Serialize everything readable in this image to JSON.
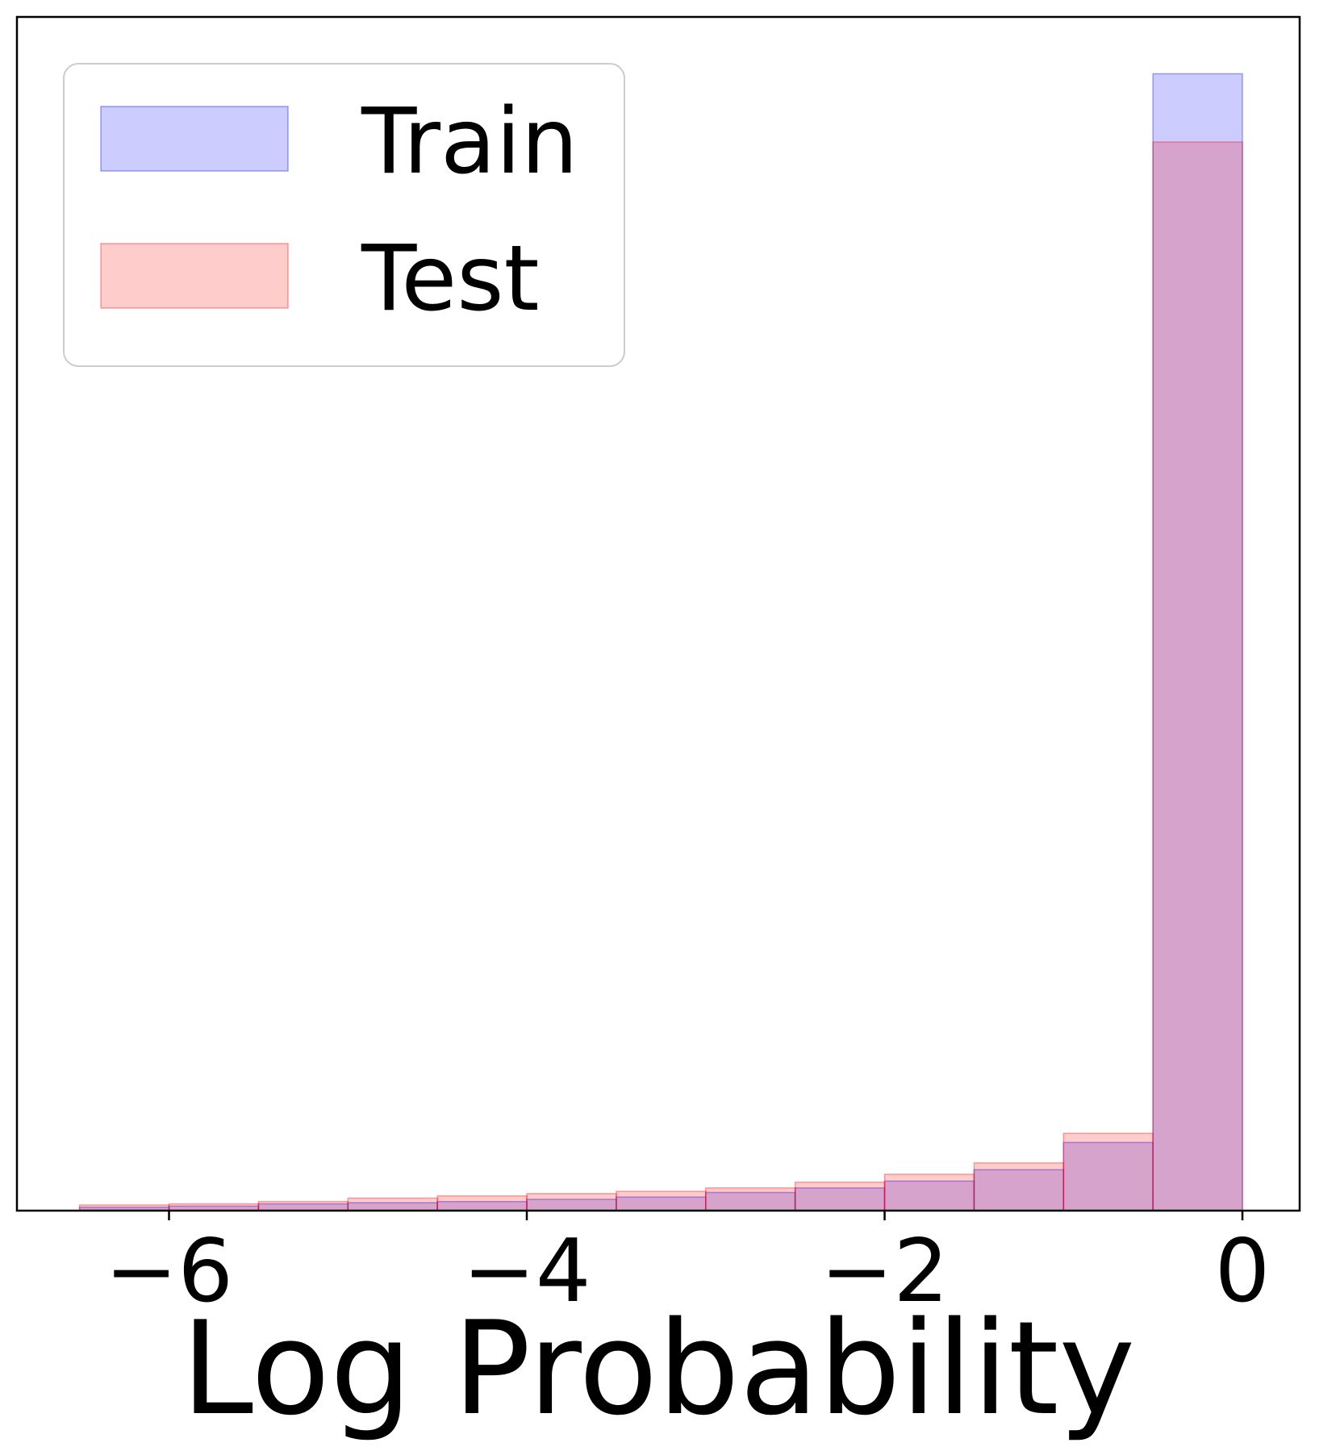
{
  "chart_data": {
    "type": "bar",
    "title": "",
    "xlabel": "Log Probability",
    "ylabel": "",
    "xlim": [
      -6.85,
      0.32
    ],
    "ylim": [
      0,
      1.05
    ],
    "grid": false,
    "legend": {
      "placement": "top-left"
    },
    "x_ticks": [
      {
        "value": -6,
        "label": "−6"
      },
      {
        "value": -4,
        "label": "−4"
      },
      {
        "value": -2,
        "label": "−2"
      },
      {
        "value": 0,
        "label": "0"
      }
    ],
    "bin_edges": [
      -6.5,
      -6.0,
      -5.5,
      -5.0,
      -4.5,
      -4.0,
      -3.5,
      -3.0,
      -2.5,
      -2.0,
      -1.5,
      -1.0,
      -0.5,
      0.0
    ],
    "series": [
      {
        "name": "Train",
        "color": "#0000ff",
        "opacity": 0.2,
        "values": [
          0.003,
          0.004,
          0.006,
          0.007,
          0.008,
          0.01,
          0.012,
          0.016,
          0.02,
          0.026,
          0.036,
          0.06,
          1.0
        ]
      },
      {
        "name": "Test",
        "color": "#ff0000",
        "opacity": 0.2,
        "values": [
          0.005,
          0.006,
          0.008,
          0.011,
          0.013,
          0.015,
          0.017,
          0.02,
          0.025,
          0.032,
          0.042,
          0.068,
          0.94
        ]
      }
    ]
  }
}
